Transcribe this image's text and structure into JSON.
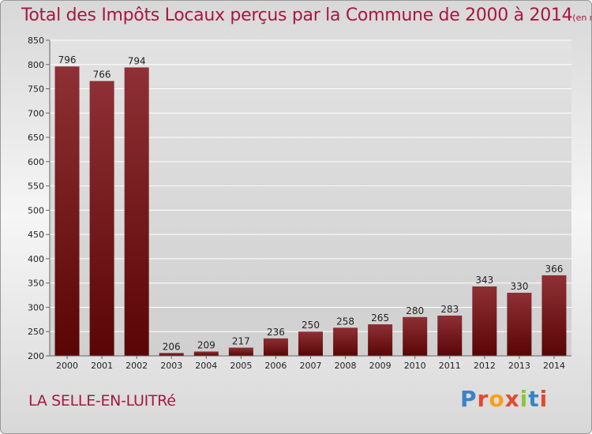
{
  "header": {
    "title": "Total des Impôts Locaux perçus par la Commune de 2000 à 2014",
    "unit": "(en milliers d'€)"
  },
  "footer": {
    "commune": "LA SELLE-EN-LUITRé",
    "logo": "Proxiti",
    "logo_colors": [
      "#3a83c6",
      "#e7472f",
      "#f7a11a",
      "#e7472f",
      "#8bc53f",
      "#3a83c6",
      "#e7472f"
    ]
  },
  "colors": {
    "bar_top": "#8e3035",
    "bar_bottom": "#5a0505",
    "text": "#a8173f",
    "grid": "#ffffff"
  },
  "chart_data": {
    "type": "bar",
    "title": "Total des Impôts Locaux perçus par la Commune de 2000 à 2014",
    "categories": [
      "2000",
      "2001",
      "2002",
      "2003",
      "2004",
      "2005",
      "2006",
      "2007",
      "2008",
      "2009",
      "2010",
      "2011",
      "2012",
      "2013",
      "2014"
    ],
    "values": [
      796,
      766,
      794,
      206,
      209,
      217,
      236,
      250,
      258,
      265,
      280,
      283,
      343,
      330,
      366
    ],
    "ylim": [
      200,
      850
    ],
    "yticks": [
      200,
      250,
      300,
      350,
      400,
      450,
      500,
      550,
      600,
      650,
      700,
      750,
      800,
      850
    ],
    "grid": true,
    "data_labels": true
  }
}
